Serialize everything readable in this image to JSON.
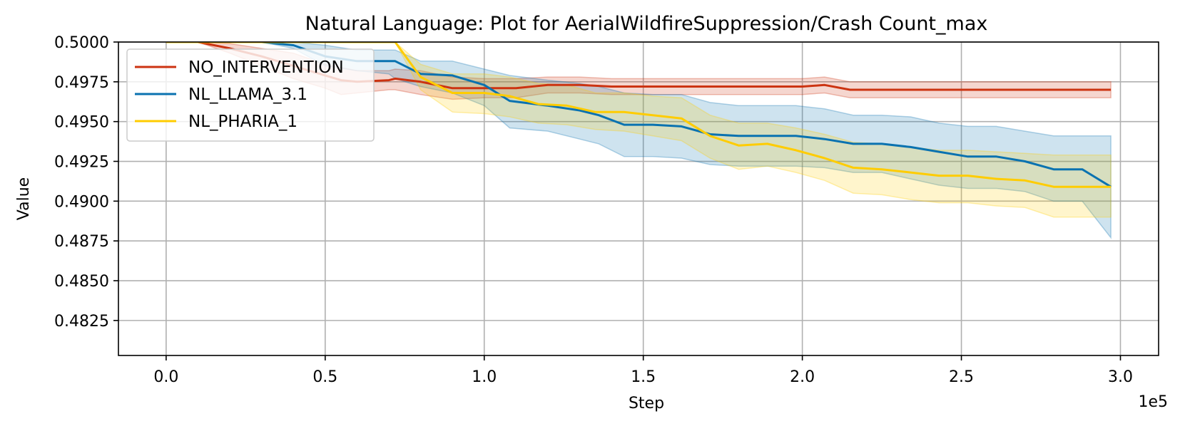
{
  "chart_data": {
    "type": "line",
    "title": "Natural Language: Plot for AerialWildfireSuppression/Crash Count_max",
    "xlabel": "Step",
    "ylabel": "Value",
    "x_offset_label": "1e5",
    "xlim": [
      -15000,
      312000
    ],
    "ylim": [
      0.4803,
      0.5
    ],
    "xticks": [
      0,
      50000,
      100000,
      150000,
      200000,
      250000,
      300000
    ],
    "xtick_labels": [
      "0.0",
      "0.5",
      "1.0",
      "1.5",
      "2.0",
      "2.5",
      "3.0"
    ],
    "yticks": [
      0.4825,
      0.485,
      0.4875,
      0.49,
      0.4925,
      0.495,
      0.4975,
      0.5
    ],
    "ytick_labels": [
      "0.4825",
      "0.4850",
      "0.4875",
      "0.4900",
      "0.4925",
      "0.4950",
      "0.4975",
      "0.5000"
    ],
    "grid": true,
    "legend_position": "top-left",
    "series": [
      {
        "name": "NO_INTERVENTION",
        "color": "#cc3311",
        "x": [
          0,
          10000,
          20000,
          30000,
          40000,
          50000,
          55000,
          60000,
          70000,
          72000,
          80000,
          90000,
          100000,
          110000,
          120000,
          130000,
          140000,
          150000,
          160000,
          170000,
          180000,
          190000,
          200000,
          207000,
          215000,
          225000,
          235000,
          245000,
          255000,
          265000,
          275000,
          285000,
          297000
        ],
        "y": [
          0.5,
          0.5,
          0.4996,
          0.4991,
          0.4985,
          0.4979,
          0.4976,
          0.4975,
          0.4976,
          0.4977,
          0.4975,
          0.4971,
          0.4971,
          0.4971,
          0.4973,
          0.4973,
          0.4972,
          0.4972,
          0.4972,
          0.4972,
          0.4972,
          0.4972,
          0.4972,
          0.4973,
          0.497,
          0.497,
          0.497,
          0.497,
          0.497,
          0.497,
          0.497,
          0.497,
          0.497
        ],
        "lower": [
          0.5,
          0.5,
          0.4993,
          0.4985,
          0.4977,
          0.4971,
          0.4967,
          0.4968,
          0.497,
          0.497,
          0.4967,
          0.4964,
          0.4965,
          0.4965,
          0.4968,
          0.4968,
          0.4967,
          0.4967,
          0.4967,
          0.4967,
          0.4967,
          0.4967,
          0.4967,
          0.4968,
          0.4965,
          0.4965,
          0.4965,
          0.4965,
          0.4965,
          0.4965,
          0.4965,
          0.4965,
          0.4965
        ],
        "upper": [
          0.5,
          0.5,
          0.4999,
          0.4996,
          0.4993,
          0.4986,
          0.4984,
          0.4982,
          0.4982,
          0.4983,
          0.4982,
          0.4978,
          0.4977,
          0.4977,
          0.4978,
          0.4978,
          0.4977,
          0.4977,
          0.4977,
          0.4977,
          0.4977,
          0.4977,
          0.4977,
          0.4978,
          0.4975,
          0.4975,
          0.4975,
          0.4975,
          0.4975,
          0.4975,
          0.4975,
          0.4975,
          0.4975
        ]
      },
      {
        "name": "NL_LLAMA_3.1",
        "color": "#0a72b0",
        "x": [
          0,
          10000,
          20000,
          30000,
          40000,
          50000,
          60000,
          70000,
          72000,
          80000,
          90000,
          100000,
          108000,
          120000,
          130000,
          136000,
          144000,
          153000,
          162000,
          171000,
          180000,
          189000,
          198000,
          207000,
          216000,
          225000,
          234000,
          243000,
          252000,
          261000,
          270000,
          279000,
          288000,
          297000
        ],
        "y": [
          0.5,
          0.5,
          0.5,
          0.5,
          0.4998,
          0.4991,
          0.4988,
          0.4988,
          0.4988,
          0.498,
          0.4979,
          0.4973,
          0.4963,
          0.496,
          0.4957,
          0.4954,
          0.4948,
          0.4948,
          0.4947,
          0.4942,
          0.4941,
          0.4941,
          0.4941,
          0.4939,
          0.4936,
          0.4936,
          0.4934,
          0.4931,
          0.4928,
          0.4928,
          0.4925,
          0.492,
          0.492,
          0.4909
        ],
        "lower": [
          0.5,
          0.5,
          0.5,
          0.5,
          0.4996,
          0.4985,
          0.4982,
          0.498,
          0.4977,
          0.4972,
          0.4968,
          0.496,
          0.4946,
          0.4944,
          0.4939,
          0.4936,
          0.4928,
          0.4928,
          0.4927,
          0.4923,
          0.4922,
          0.4922,
          0.4922,
          0.4921,
          0.4918,
          0.4918,
          0.4914,
          0.491,
          0.4908,
          0.4908,
          0.4906,
          0.49,
          0.49,
          0.4877
        ],
        "upper": [
          0.5,
          0.5,
          0.5,
          0.5,
          0.5,
          0.4998,
          0.4995,
          0.4995,
          0.4995,
          0.4988,
          0.4988,
          0.4983,
          0.4979,
          0.4976,
          0.4974,
          0.4972,
          0.4968,
          0.4967,
          0.4967,
          0.4962,
          0.496,
          0.496,
          0.496,
          0.4958,
          0.4954,
          0.4954,
          0.4953,
          0.4949,
          0.4947,
          0.4947,
          0.4944,
          0.4941,
          0.4941,
          0.4941
        ]
      },
      {
        "name": "NL_PHARIA_1",
        "color": "#ffcc00",
        "x": [
          0,
          10000,
          20000,
          30000,
          40000,
          50000,
          60000,
          70000,
          72000,
          80000,
          90000,
          100000,
          108000,
          117000,
          126000,
          135000,
          144000,
          153000,
          162000,
          171000,
          180000,
          189000,
          198000,
          207000,
          216000,
          225000,
          234000,
          243000,
          252000,
          261000,
          270000,
          279000,
          288000,
          297000
        ],
        "y": [
          0.5,
          0.5,
          0.5,
          0.5,
          0.5,
          0.5,
          0.5,
          0.5,
          0.5,
          0.4978,
          0.4968,
          0.4968,
          0.4966,
          0.4961,
          0.496,
          0.4956,
          0.4956,
          0.4954,
          0.4952,
          0.4941,
          0.4935,
          0.4936,
          0.4932,
          0.4927,
          0.4921,
          0.492,
          0.4918,
          0.4916,
          0.4916,
          0.4914,
          0.4913,
          0.4909,
          0.4909,
          0.4909
        ],
        "lower": [
          0.5,
          0.5,
          0.5,
          0.5,
          0.5,
          0.5,
          0.5,
          0.5,
          0.5,
          0.497,
          0.4956,
          0.4955,
          0.4953,
          0.4949,
          0.4948,
          0.4945,
          0.4944,
          0.4941,
          0.4938,
          0.4927,
          0.492,
          0.4922,
          0.4918,
          0.4913,
          0.4905,
          0.4904,
          0.4901,
          0.4899,
          0.4899,
          0.4897,
          0.4896,
          0.489,
          0.489,
          0.489
        ],
        "upper": [
          0.5,
          0.5,
          0.5,
          0.5,
          0.5,
          0.5,
          0.5,
          0.5,
          0.5,
          0.4986,
          0.498,
          0.498,
          0.4978,
          0.4974,
          0.4973,
          0.4968,
          0.4968,
          0.4966,
          0.4965,
          0.4954,
          0.4949,
          0.4949,
          0.4946,
          0.4942,
          0.4937,
          0.4936,
          0.4934,
          0.4932,
          0.4932,
          0.4931,
          0.493,
          0.4929,
          0.4929,
          0.4929
        ]
      }
    ]
  }
}
